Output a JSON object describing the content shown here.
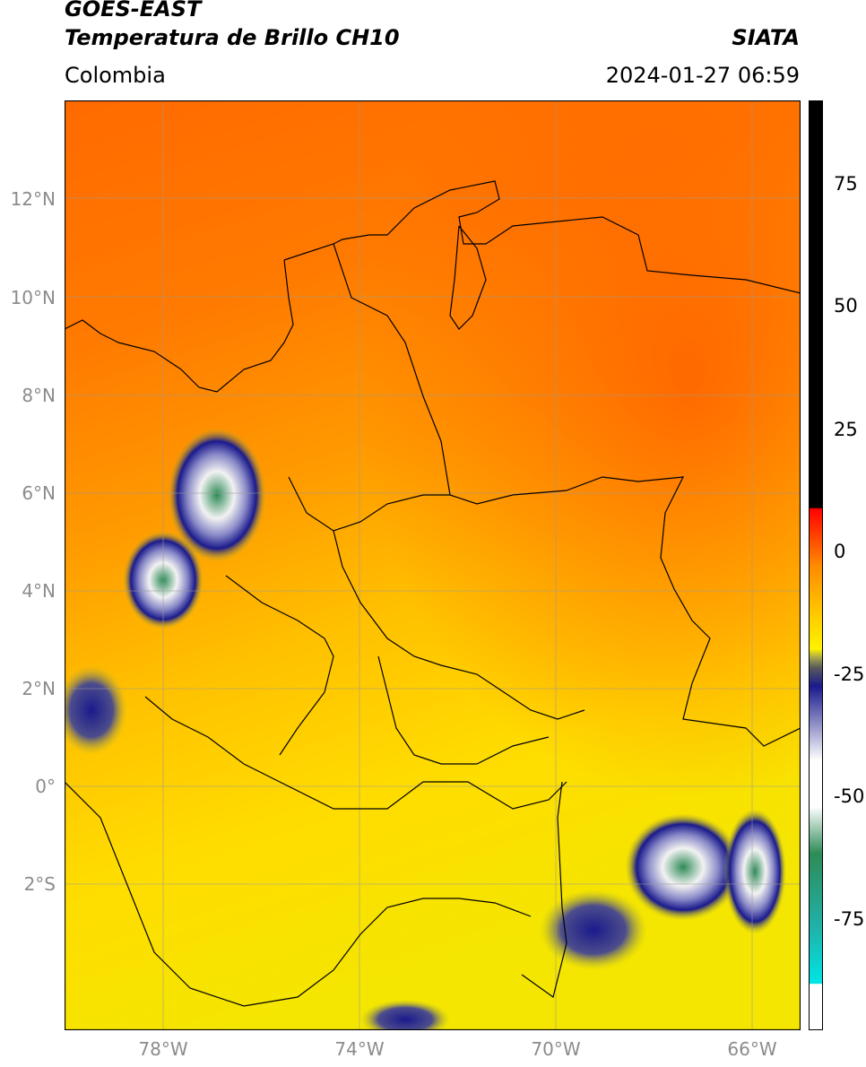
{
  "header": {
    "satellite": "GOES-EAST",
    "product": "Temperatura de Brillo CH10",
    "brand": "SIATA",
    "region": "Colombia",
    "datetime": "2024-01-27 06:59"
  },
  "map": {
    "lat_ticks": [
      "12°N",
      "10°N",
      "8°N",
      "6°N",
      "4°N",
      "2°N",
      "0°",
      "2°S"
    ],
    "lon_ticks": [
      "78°W",
      "74°W",
      "70°W",
      "66°W"
    ],
    "extent": {
      "lon_min": -80.0,
      "lon_max": -65.0,
      "lat_min": -5.0,
      "lat_max": 14.0
    }
  },
  "colorbar": {
    "ticks": [
      "75",
      "50",
      "25",
      "0",
      "-25",
      "-50",
      "-75"
    ],
    "range": [
      -95,
      90
    ]
  },
  "colors": {
    "warm": "#ff6a00",
    "mild": "#ffd200",
    "cold": "#1a1a8c",
    "very_cold": "#2e8b57"
  }
}
